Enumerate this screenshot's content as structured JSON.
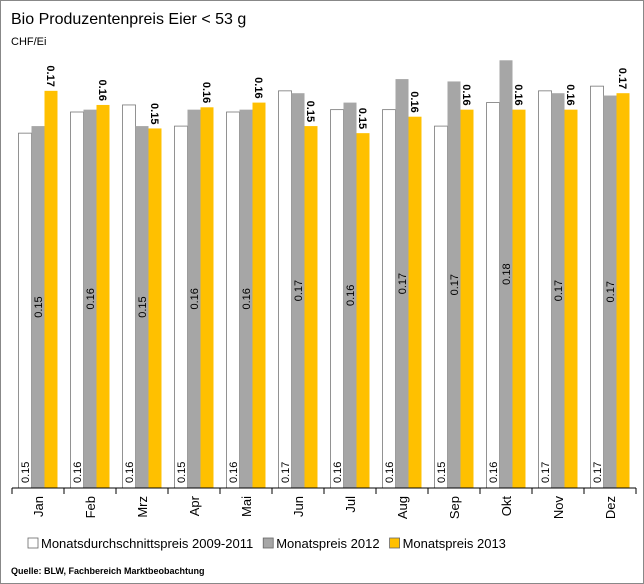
{
  "chart_data": {
    "type": "bar",
    "title": "Bio Produzentenpreis Eier < 53 g",
    "unit_label": "CHF/Ei",
    "source": "Quelle: BLW, Fachbereich Marktbeobachtung",
    "categories": [
      "Jan",
      "Feb",
      "Mrz",
      "Apr",
      "Mai",
      "Jun",
      "Jul",
      "Aug",
      "Sep",
      "Okt",
      "Nov",
      "Dez"
    ],
    "ylim": [
      0,
      0.18
    ],
    "series": [
      {
        "name": "Monatsdurchschnittspreis 2009-2011",
        "color": "#ffffff",
        "values": [
          0.151,
          0.16,
          0.163,
          0.154,
          0.16,
          0.169,
          0.161,
          0.161,
          0.154,
          0.164,
          0.169,
          0.171
        ],
        "value_labels": [
          "0.15",
          "0.16",
          "0.16",
          "0.15",
          "0.16",
          "0.17",
          "0.16",
          "0.16",
          "0.15",
          "0.16",
          "0.17",
          "0.17"
        ]
      },
      {
        "name": "Monatspreis 2012",
        "color": "#a6a6a6",
        "values": [
          0.154,
          0.161,
          0.154,
          0.161,
          0.161,
          0.168,
          0.164,
          0.174,
          0.173,
          0.182,
          0.168,
          0.167
        ],
        "value_labels": [
          "0.15",
          "0.16",
          "0.15",
          "0.16",
          "0.16",
          "0.17",
          "0.16",
          "0.17",
          "0.17",
          "0.18",
          "0.17",
          "0.17"
        ]
      },
      {
        "name": "Monatspreis 2013",
        "color": "#ffc000",
        "values": [
          0.169,
          0.163,
          0.153,
          0.162,
          0.164,
          0.154,
          0.151,
          0.158,
          0.161,
          0.161,
          0.161,
          0.168
        ],
        "value_labels": [
          "0.17",
          "0.16",
          "0.15",
          "0.16",
          "0.16",
          "0.15",
          "0.15",
          "0.16",
          "0.16",
          "0.16",
          "0.16",
          "0.17"
        ]
      }
    ]
  }
}
